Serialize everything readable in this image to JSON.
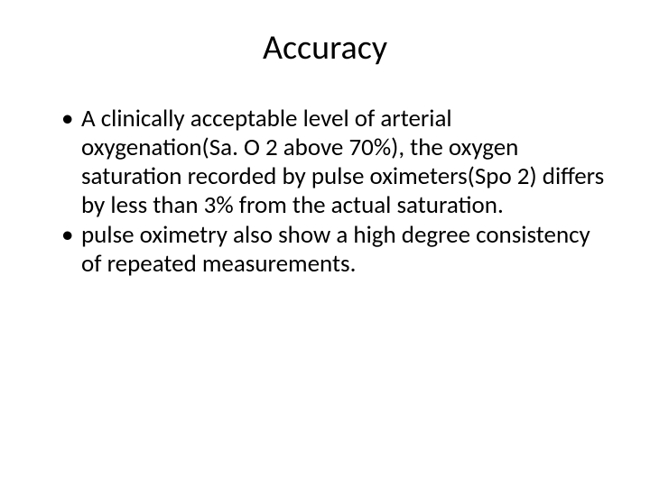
{
  "slide": {
    "title": "Accuracy",
    "title_fontsize": 38,
    "title_color": "#000000",
    "body_fontsize": 27,
    "body_color": "#000000",
    "background_color": "#ffffff",
    "bullets": [
      "A clinically acceptable level of arterial oxygenation(Sa. O 2 above 70%), the oxygen saturation recorded by pulse oximeters(Spo 2) differs by less than 3% from the actual saturation.",
      "pulse oximetry also show a high degree consistency of repeated measurements."
    ]
  }
}
